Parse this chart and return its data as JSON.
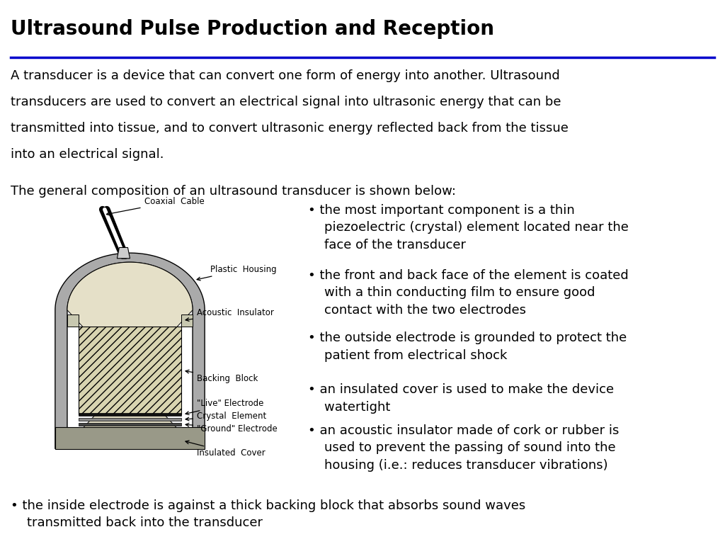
{
  "title": "Ultrasound Pulse Production and Reception",
  "title_fontsize": 20,
  "title_color": "#000000",
  "title_line_color": "#0000CC",
  "bg_color": "#FFFFFF",
  "para1_lines": [
    "A transducer is a device that can convert one form of energy into another. Ultrasound",
    "transducers are used to convert an electrical signal into ultrasonic energy that can be",
    "transmitted into tissue, and to convert ultrasonic energy reflected back from the tissue",
    "into an electrical signal."
  ],
  "para2": "The general composition of an ultrasound transducer is shown below:",
  "bullets": [
    "• the most important component is a thin\n    piezoelectric (crystal) element located near the\n    face of the transducer",
    "• the front and back face of the element is coated\n    with a thin conducting film to ensure good\n    contact with the two electrodes",
    "• the outside electrode is grounded to protect the\n    patient from electrical shock",
    "• an insulated cover is used to make the device\n    watertight",
    "• an acoustic insulator made of cork or rubber is\n    used to prevent the passing of sound into the\n    housing (i.e.: reduces transducer vibrations)"
  ],
  "bottom_bullet": "• the inside electrode is against a thick backing block that absorbs sound waves\n    transmitted back into the transducer",
  "text_fontsize": 13,
  "bullet_fontsize": 13,
  "diagram_bg": "#F0ECD8"
}
